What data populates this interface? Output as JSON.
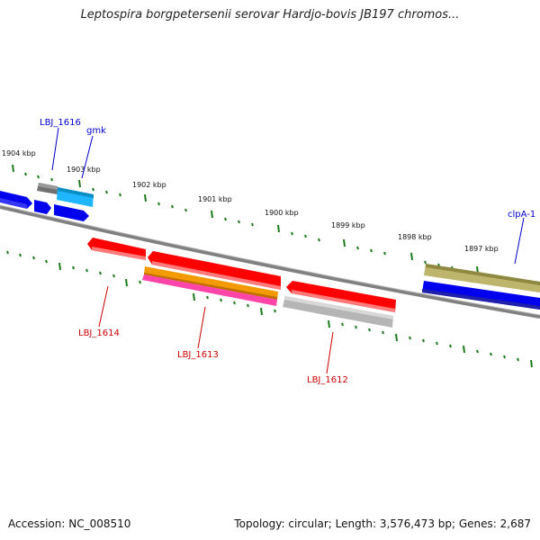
{
  "title": "Leptospira borgpetersenii serovar Hardjo-bovis JB197 chromos...",
  "footer": {
    "accession": "Accession: NC_008510",
    "summary": "Topology: circular; Length: 3,576,473 bp; Genes: 2,687"
  },
  "scale_labels": [
    "1904 kbp",
    "1903 kbp",
    "1902 kbp",
    "1901 kbp",
    "1900 kbp",
    "1899 kbp",
    "1898 kbp",
    "1897 kbp"
  ],
  "gene_labels": {
    "lbj1616": "LBJ_1616",
    "gmk": "gmk",
    "clpA1": "clpA-1",
    "lbj1614": "LBJ_1614",
    "lbj1613": "LBJ_1613",
    "lbj1612": "LBJ_1612"
  },
  "colors": {
    "forward_label": "#0000cc",
    "reverse_label": "#cc0000",
    "tick": "#1a7a1a",
    "backbone": "#808080"
  }
}
